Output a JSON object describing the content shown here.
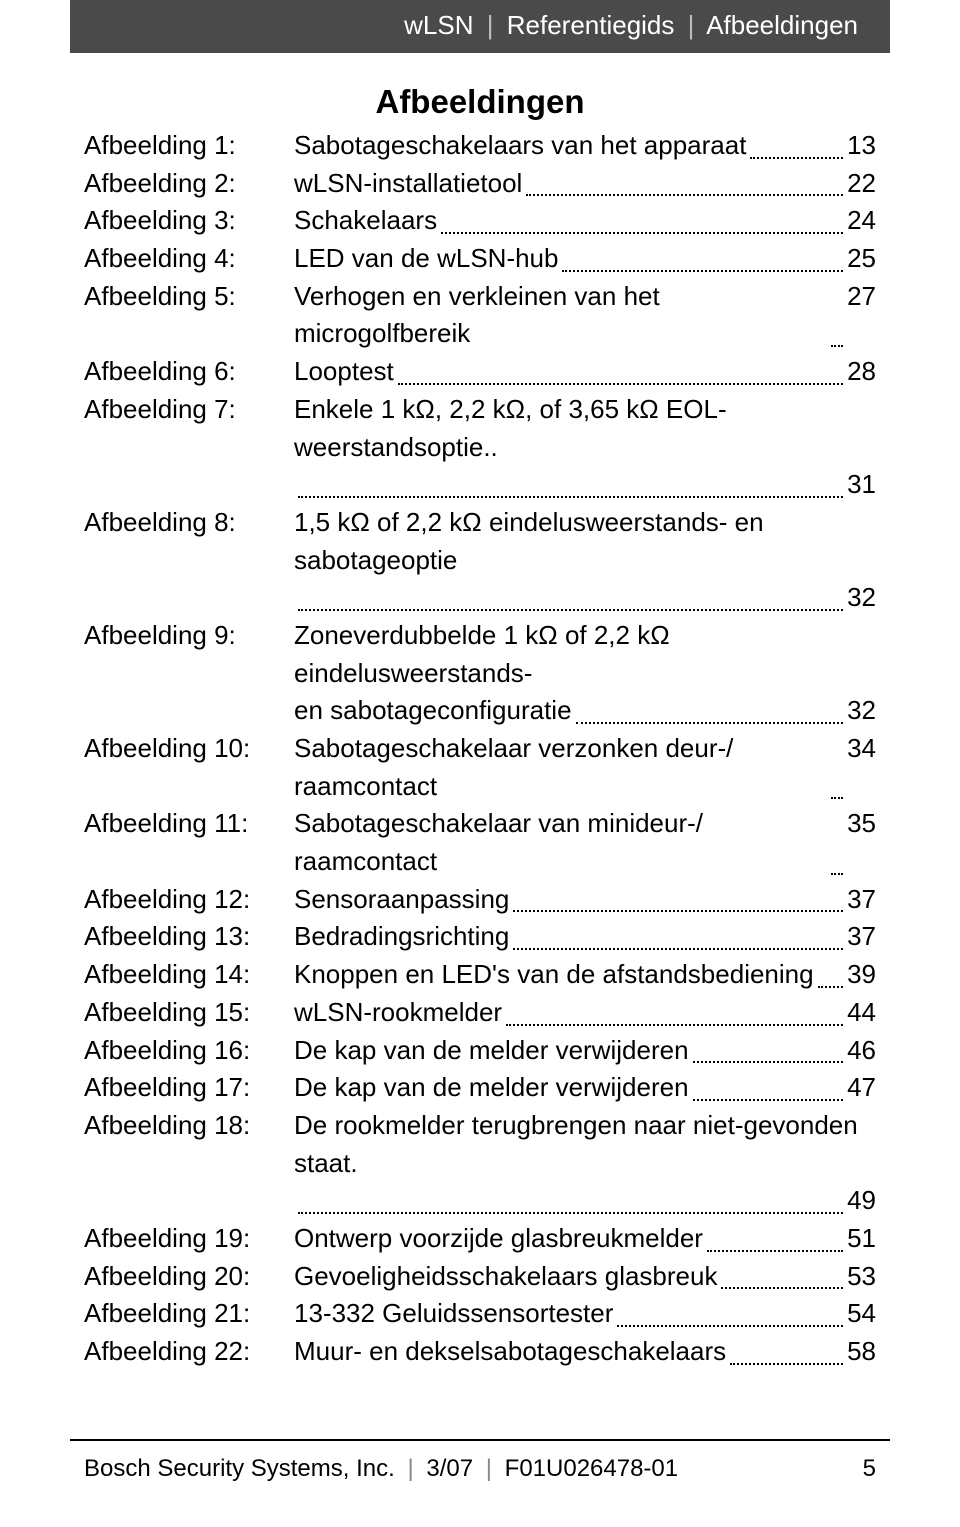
{
  "header": {
    "part1": "wLSN",
    "part2": "Referentiegids",
    "part3": "Afbeeldingen"
  },
  "toc": {
    "title": "Afbeeldingen",
    "entries": [
      {
        "label": "Afbeelding 1:",
        "desc": "Sabotageschakelaars van het apparaat",
        "page": "13"
      },
      {
        "label": "Afbeelding 2:",
        "desc": "wLSN-installatietool",
        "page": "22"
      },
      {
        "label": "Afbeelding 3:",
        "desc": "Schakelaars",
        "page": "24"
      },
      {
        "label": "Afbeelding 4:",
        "desc": "LED van de wLSN-hub",
        "page": "25"
      },
      {
        "label": "Afbeelding 5:",
        "desc": "Verhogen en verkleinen van het microgolfbereik",
        "page": "27"
      },
      {
        "label": "Afbeelding 6:",
        "desc": "Looptest",
        "page": "28"
      },
      {
        "label": "Afbeelding 7:",
        "desc": "Enkele 1 kΩ, 2,2 kΩ, of 3,65 kΩ EOL-weerstandsoptie..",
        "page": "31",
        "pageOnNewLine": true
      },
      {
        "label": "Afbeelding 8:",
        "desc": "1,5 kΩ of 2,2 kΩ eindelusweerstands- en sabotageoptie",
        "page": "32",
        "pageOnNewLine": true
      },
      {
        "label": "Afbeelding 9:",
        "desc_line1": "Zoneverdubbelde 1 kΩ of 2,2 kΩ eindelusweerstands-",
        "desc_line2": "en sabotageconfiguratie",
        "page": "32",
        "twoLine": true
      },
      {
        "label": "Afbeelding 10:",
        "desc": "Sabotageschakelaar verzonken deur-/ raamcontact",
        "page": "34"
      },
      {
        "label": "Afbeelding 11:",
        "desc": "Sabotageschakelaar van minideur-/ raamcontact",
        "page": "35"
      },
      {
        "label": "Afbeelding 12:",
        "desc": " Sensoraanpassing",
        "page": "37"
      },
      {
        "label": "Afbeelding 13:",
        "desc": " Bedradingsrichting",
        "page": "37"
      },
      {
        "label": "Afbeelding 14:",
        "desc": "Knoppen en LED's van de afstandsbediening",
        "page": "39"
      },
      {
        "label": "Afbeelding 15:",
        "desc": "wLSN-rookmelder",
        "page": "44"
      },
      {
        "label": "Afbeelding 16:",
        "desc": "De kap van de melder verwijderen",
        "page": "46"
      },
      {
        "label": "Afbeelding 17:",
        "desc": " De kap van de melder verwijderen",
        "page": "47"
      },
      {
        "label": "Afbeelding 18:",
        "desc": "De rookmelder terugbrengen naar niet-gevonden staat.",
        "page": "49",
        "pageOnNewLine": true
      },
      {
        "label": "Afbeelding 19:",
        "desc": "Ontwerp voorzijde glasbreukmelder",
        "page": "51"
      },
      {
        "label": "Afbeelding 20:",
        "desc": "Gevoeligheidsschakelaars glasbreuk",
        "page": "53"
      },
      {
        "label": "Afbeelding 21:",
        "desc": "13-332 Geluidssensortester",
        "page": "54"
      },
      {
        "label": "Afbeelding 22:",
        "desc": "Muur- en dekselsabotageschakelaars",
        "page": "58"
      }
    ]
  },
  "footer": {
    "company": "Bosch Security Systems, Inc.",
    "date": "3/07",
    "docnum": "F01U026478-01",
    "pagenum": "5"
  }
}
